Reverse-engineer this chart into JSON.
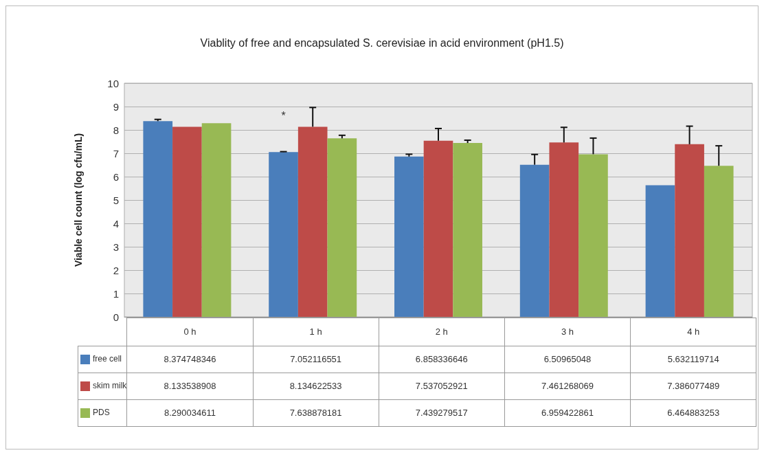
{
  "chart_data": {
    "type": "bar",
    "title": "Viablity of free and encapsulated S. cerevisiae in acid environment (pH1.5)",
    "ylabel": "Viable cell count (log cfu/mL)",
    "categories": [
      "0 h",
      "1 h",
      "2 h",
      "3 h",
      "4 h"
    ],
    "series": [
      {
        "name": "free cell",
        "color": "#4a7ebb",
        "values": [
          8.374748346,
          7.052116551,
          6.858336646,
          6.50965048,
          5.632119714
        ],
        "errors": [
          [
            8.374748346,
            8.45
          ],
          [
            7.052116551,
            7.07
          ],
          [
            6.858336646,
            6.96
          ],
          [
            6.50965048,
            6.95
          ],
          null
        ]
      },
      {
        "name": "skim milk",
        "color": "#be4b48",
        "values": [
          8.133538908,
          8.134622533,
          7.537052921,
          7.461268069,
          7.386077489
        ],
        "errors": [
          null,
          [
            8.134622533,
            8.96
          ],
          [
            7.537052921,
            8.06
          ],
          [
            7.461268069,
            8.11
          ],
          [
            7.386077489,
            8.16
          ]
        ]
      },
      {
        "name": "PDS",
        "color": "#98b954",
        "values": [
          8.290034611,
          7.638878181,
          7.439279517,
          6.959422861,
          6.464883253
        ],
        "errors": [
          null,
          [
            7.638878181,
            7.77
          ],
          [
            7.439279517,
            7.56
          ],
          [
            6.959422861,
            7.65
          ],
          [
            6.464883253,
            7.32
          ]
        ]
      }
    ],
    "annotations": [
      {
        "text": "*",
        "x": "1 h",
        "y": 8.6
      }
    ],
    "ylim": [
      0,
      10
    ],
    "yticks": [
      0,
      1,
      2,
      3,
      4,
      5,
      6,
      7,
      8,
      9,
      10
    ],
    "grid": "y",
    "legend": "bottom",
    "data_labels": true
  }
}
